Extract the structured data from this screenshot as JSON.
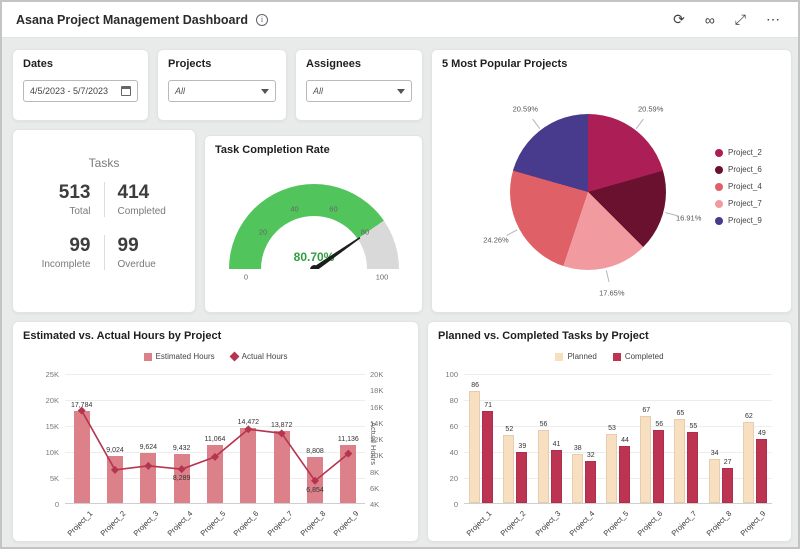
{
  "header": {
    "title": "Asana Project Management Dashboard",
    "info_glyph": "i",
    "actions": [
      {
        "name": "refresh-icon",
        "glyph": "⟳"
      },
      {
        "name": "glasses-icon",
        "glyph": "∞"
      },
      {
        "name": "fullscreen-icon",
        "glyph": "⤢"
      },
      {
        "name": "more-icon",
        "glyph": "⋯"
      }
    ]
  },
  "filters": {
    "dates": {
      "label": "Dates",
      "value": "4/5/2023 - 5/7/2023"
    },
    "projects": {
      "label": "Projects",
      "value": "All"
    },
    "assignees": {
      "label": "Assignees",
      "value": "All"
    }
  },
  "tasks": {
    "title": "Tasks",
    "stats": [
      {
        "value": "513",
        "label": "Total"
      },
      {
        "value": "414",
        "label": "Completed"
      },
      {
        "value": "99",
        "label": "Incomplete"
      },
      {
        "value": "99",
        "label": "Overdue"
      }
    ]
  },
  "chart_data": [
    {
      "type": "gauge",
      "title": "Task Completion Rate",
      "value": 80.7,
      "label": "80.70%",
      "min": 0,
      "max": 100,
      "ticks": [
        0,
        20,
        40,
        60,
        80,
        100
      ],
      "color": "#52c45c",
      "track": "#d9d9d9"
    },
    {
      "type": "pie",
      "title": "5 Most Popular Projects",
      "slices": [
        {
          "name": "Project_2",
          "pct": 20.59,
          "label": "20.59%",
          "color": "#ac1e56"
        },
        {
          "name": "Project_6",
          "pct": 16.91,
          "label": "16.91%",
          "color": "#6b1130"
        },
        {
          "name": "Project_7",
          "pct": 17.65,
          "label": "17.65%",
          "color": "#f19aa0"
        },
        {
          "name": "Project_4",
          "pct": 24.26,
          "label": "24.26%",
          "color": "#e06067"
        },
        {
          "name": "Project_9",
          "pct": 20.59,
          "label": "20.59%",
          "color": "#483a8c"
        }
      ],
      "legend": [
        "Project_2",
        "Project_6",
        "Project_4",
        "Project_7",
        "Project_9"
      ]
    },
    {
      "type": "bar+line",
      "title": "Estimated vs. Actual Hours by Project",
      "categories": [
        "Project_1",
        "Project_2",
        "Project_3",
        "Project_4",
        "Project_5",
        "Project_6",
        "Project_7",
        "Project_8",
        "Project_9"
      ],
      "bar_series": {
        "name": "Estimated Hours",
        "color": "#dc8089",
        "values": [
          17784,
          9024,
          9624,
          9432,
          11064,
          14472,
          13872,
          8808,
          11136
        ],
        "labels": [
          "17,784",
          "9,024",
          "9,624",
          "9,432",
          "11,064",
          "14,472",
          "13,872",
          "8,808",
          "11,136"
        ]
      },
      "line_series": {
        "name": "Actual Hours",
        "color": "#b5354f",
        "values": [
          15500,
          8200,
          8700,
          8289,
          9800,
          13200,
          12700,
          6854,
          10200
        ],
        "labels": [
          "",
          "",
          "",
          "8,289",
          "",
          "",
          "",
          "6,854",
          ""
        ]
      },
      "axis_left": {
        "title": "Estimated Hours",
        "max": 25000,
        "ticks": [
          "25K",
          "20K",
          "15K",
          "10K",
          "5K",
          "0"
        ]
      },
      "axis_right": {
        "title": "Actual Hours",
        "min": 4000,
        "max": 20000,
        "ticks": [
          "20K",
          "18K",
          "16K",
          "14K",
          "12K",
          "10K",
          "8K",
          "6K",
          "4K"
        ]
      }
    },
    {
      "type": "grouped-bar",
      "title": "Planned vs. Completed Tasks by Project",
      "categories": [
        "Project_1",
        "Project_2",
        "Project_3",
        "Project_4",
        "Project_5",
        "Project_6",
        "Project_7",
        "Project_8",
        "Project_9"
      ],
      "series": [
        {
          "name": "Planned",
          "color": "#f8dfc0",
          "values": [
            86,
            52,
            56,
            38,
            53,
            67,
            65,
            34,
            62
          ]
        },
        {
          "name": "Completed",
          "color": "#bd3452",
          "values": [
            71,
            39,
            41,
            32,
            44,
            56,
            55,
            27,
            49
          ]
        }
      ],
      "ymax": 100,
      "yticks": [
        "100",
        "80",
        "60",
        "40",
        "20",
        "0"
      ]
    }
  ]
}
